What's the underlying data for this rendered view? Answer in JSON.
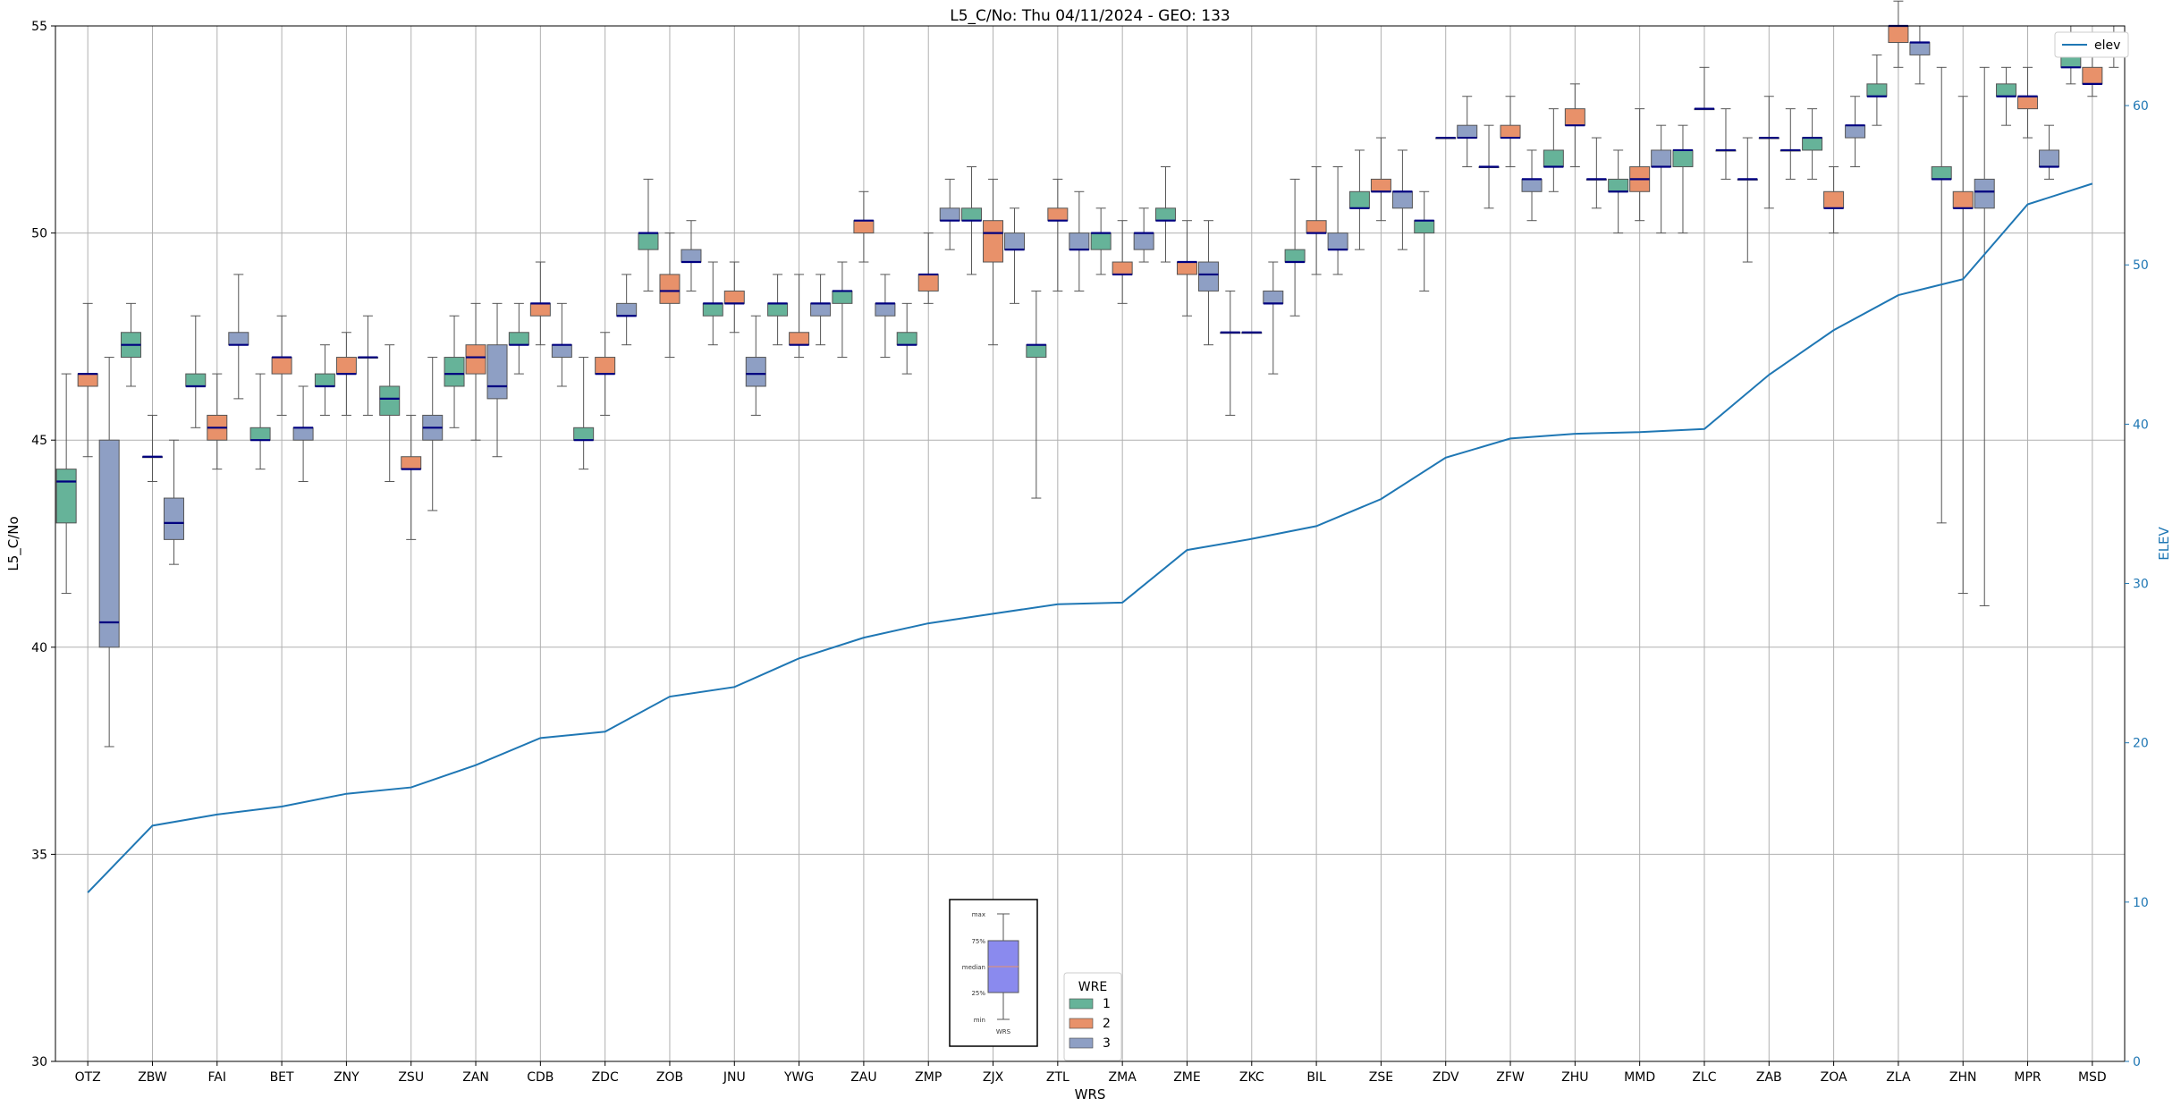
{
  "chart_data": {
    "type": "box",
    "title": "L5_C/No: Thu 04/11/2024 - GEO: 133",
    "xlabel": "WRS",
    "ylabel": "L5_C/No",
    "y2label": "ELEV",
    "ylim": [
      30,
      55
    ],
    "y2lim": [
      0,
      65
    ],
    "yticks": [
      30,
      35,
      40,
      45,
      50,
      55
    ],
    "y2ticks": [
      0,
      10,
      20,
      30,
      40,
      50,
      60
    ],
    "grid": true,
    "categories": [
      "OTZ",
      "ZBW",
      "FAI",
      "BET",
      "ZNY",
      "ZSU",
      "ZAN",
      "CDB",
      "ZDC",
      "ZOB",
      "JNU",
      "YWG",
      "ZAU",
      "ZMP",
      "ZJX",
      "ZTL",
      "ZMA",
      "ZME",
      "ZKC",
      "BIL",
      "ZSE",
      "ZDV",
      "ZFW",
      "ZHU",
      "MMD",
      "ZLC",
      "ZAB",
      "ZOA",
      "ZLA",
      "ZHN",
      "MPR",
      "MSD"
    ],
    "legend": {
      "title": "WRE",
      "placement": "bottom-center",
      "entries": [
        {
          "label": "1",
          "color": "#66b399"
        },
        {
          "label": "2",
          "color": "#e8916a"
        },
        {
          "label": "3",
          "color": "#8e9fc4"
        }
      ]
    },
    "line_legend": {
      "label": "elev",
      "placement": "top-right"
    },
    "box_key": {
      "labels": [
        "max",
        "75%",
        "median",
        "25%",
        "min"
      ],
      "caption": "WRS"
    },
    "series": [
      {
        "name": "1",
        "color": "#66b399",
        "boxes": [
          [
            41.3,
            43,
            44,
            44.3,
            46.6
          ],
          [
            46.3,
            47,
            47.3,
            47.6,
            48.3
          ],
          [
            45.3,
            46.3,
            46.3,
            46.6,
            48
          ],
          [
            44.3,
            45,
            45,
            45.3,
            46.6
          ],
          [
            45.6,
            46.3,
            46.3,
            46.6,
            47.3
          ],
          [
            44,
            45.6,
            46,
            46.3,
            47.3
          ],
          [
            45.3,
            46.3,
            46.6,
            47,
            48
          ],
          [
            46.6,
            47.3,
            47.3,
            47.6,
            48.3
          ],
          [
            44.3,
            45,
            45,
            45.3,
            47
          ],
          [
            48.6,
            49.6,
            50,
            50,
            51.3
          ],
          [
            47.3,
            48,
            48.3,
            48.3,
            49.3
          ],
          [
            47.3,
            48,
            48.3,
            48.3,
            49
          ],
          [
            47,
            48.3,
            48.6,
            48.6,
            49.3
          ],
          [
            46.6,
            47.3,
            47.3,
            47.6,
            48.3
          ],
          [
            49,
            50.3,
            50.3,
            50.6,
            51.6
          ],
          [
            43.6,
            47,
            47.3,
            47.3,
            48.6
          ],
          [
            49,
            49.6,
            50,
            50,
            50.6
          ],
          [
            49.3,
            50.3,
            50.3,
            50.6,
            51.6
          ],
          [
            45.6,
            47.6,
            47.6,
            47.6,
            48.6
          ],
          [
            48,
            49.3,
            49.3,
            49.6,
            51.3
          ],
          [
            49.6,
            50.6,
            50.6,
            51,
            52
          ],
          [
            48.6,
            50,
            50.3,
            50.3,
            51
          ],
          [
            50.6,
            51.6,
            51.6,
            51.6,
            52.6
          ],
          [
            51,
            51.6,
            51.6,
            52,
            53
          ],
          [
            50,
            51,
            51,
            51.3,
            52
          ],
          [
            50,
            51.6,
            52,
            52,
            52.6
          ],
          [
            49.3,
            51.3,
            51.3,
            51.3,
            52.3
          ],
          [
            51.3,
            52,
            52.3,
            52.3,
            53
          ],
          [
            52.6,
            53.3,
            53.3,
            53.6,
            54.3
          ],
          [
            43,
            51.3,
            51.3,
            51.6,
            54
          ],
          [
            52.6,
            53.3,
            53.3,
            53.6,
            54
          ],
          [
            53.6,
            54,
            54,
            54.3,
            55
          ]
        ]
      },
      {
        "name": "2",
        "color": "#e8916a",
        "boxes": [
          [
            44.6,
            46.3,
            46.6,
            46.6,
            48.3
          ],
          [
            44,
            44.6,
            44.6,
            44.6,
            45.6
          ],
          [
            44.3,
            45,
            45.3,
            45.6,
            46.6
          ],
          [
            45.6,
            46.6,
            47,
            47,
            48
          ],
          [
            45.6,
            46.6,
            46.6,
            47,
            47.6
          ],
          [
            42.6,
            44.3,
            44.3,
            44.6,
            45.6
          ],
          [
            45,
            46.6,
            47,
            47.3,
            48.3
          ],
          [
            47.3,
            48,
            48.3,
            48.3,
            49.3
          ],
          [
            45.6,
            46.6,
            46.6,
            47,
            47.6
          ],
          [
            47,
            48.3,
            48.6,
            49,
            50
          ],
          [
            47.6,
            48.3,
            48.3,
            48.6,
            49.3
          ],
          [
            47,
            47.3,
            47.3,
            47.6,
            49
          ],
          [
            49.3,
            50,
            50.3,
            50.3,
            51
          ],
          [
            48.3,
            48.6,
            49,
            49,
            50
          ],
          [
            47.3,
            49.3,
            50,
            50.3,
            51.3
          ],
          [
            48.6,
            50.3,
            50.3,
            50.6,
            51.3
          ],
          [
            48.3,
            49,
            49,
            49.3,
            50.3
          ],
          [
            48,
            49,
            49.3,
            49.3,
            50.3
          ],
          [
            47.6,
            47.6,
            47.6,
            47.6,
            47.6
          ],
          [
            49,
            50,
            50,
            50.3,
            51.6
          ],
          [
            50.3,
            51,
            51,
            51.3,
            52.3
          ],
          [
            52.3,
            52.3,
            52.3,
            52.3,
            52.3
          ],
          [
            51.6,
            52.3,
            52.3,
            52.6,
            53.3
          ],
          [
            51.6,
            52.6,
            52.6,
            53,
            53.6
          ],
          [
            50.3,
            51,
            51.3,
            51.6,
            53
          ],
          [
            53,
            53,
            53,
            53,
            54
          ],
          [
            50.6,
            52.3,
            52.3,
            52.3,
            53.3
          ],
          [
            50,
            50.6,
            50.6,
            51,
            51.6
          ],
          [
            54,
            54.6,
            55,
            55,
            55.6
          ],
          [
            41.3,
            50.6,
            50.6,
            51,
            53.3
          ],
          [
            52.3,
            53,
            53.3,
            53.3,
            54
          ],
          [
            53.3,
            53.6,
            53.6,
            54,
            54.3
          ]
        ]
      },
      {
        "name": "3",
        "color": "#8e9fc4",
        "boxes": [
          [
            37.6,
            40,
            40.6,
            45,
            47
          ],
          [
            42,
            42.6,
            43,
            43.6,
            45
          ],
          [
            46,
            47.3,
            47.3,
            47.6,
            49
          ],
          [
            44,
            45,
            45.3,
            45.3,
            46.3
          ],
          [
            45.6,
            47,
            47,
            47,
            48
          ],
          [
            43.3,
            45,
            45.3,
            45.6,
            47
          ],
          [
            44.6,
            46,
            46.3,
            47.3,
            48.3
          ],
          [
            46.3,
            47,
            47.3,
            47.3,
            48.3
          ],
          [
            47.3,
            48,
            48,
            48.3,
            49
          ],
          [
            48.6,
            49.3,
            49.3,
            49.6,
            50.3
          ],
          [
            45.6,
            46.3,
            46.6,
            47,
            48
          ],
          [
            47.3,
            48,
            48.3,
            48.3,
            49
          ],
          [
            47,
            48,
            48.3,
            48.3,
            49
          ],
          [
            49.6,
            50.3,
            50.3,
            50.6,
            51.3
          ],
          [
            48.3,
            49.6,
            49.6,
            50,
            50.6
          ],
          [
            48.6,
            49.6,
            49.6,
            50,
            51
          ],
          [
            49.3,
            49.6,
            50,
            50,
            50.6
          ],
          [
            47.3,
            48.6,
            49,
            49.3,
            50.3
          ],
          [
            46.6,
            48.3,
            48.3,
            48.6,
            49.3
          ],
          [
            49,
            49.6,
            49.6,
            50,
            51.6
          ],
          [
            49.6,
            50.6,
            51,
            51,
            52
          ],
          [
            51.6,
            52.3,
            52.3,
            52.6,
            53.3
          ],
          [
            50.3,
            51,
            51.3,
            51.3,
            52
          ],
          [
            50.6,
            51.3,
            51.3,
            51.3,
            52.3
          ],
          [
            50,
            51.6,
            51.6,
            52,
            52.6
          ],
          [
            51.3,
            52,
            52,
            52,
            53
          ],
          [
            51.3,
            52,
            52,
            52,
            53
          ],
          [
            51.6,
            52.3,
            52.6,
            52.6,
            53.3
          ],
          [
            53.6,
            54.3,
            54.6,
            54.6,
            55
          ],
          [
            41,
            50.6,
            51,
            51.3,
            54
          ],
          [
            51.3,
            51.6,
            51.6,
            52,
            52.6
          ],
          [
            54,
            54.3,
            54.6,
            54.6,
            55
          ]
        ]
      },
      {
        "name": "elev",
        "type": "line",
        "axis": "right",
        "color": "#1f77b4",
        "values": [
          10.6,
          14.8,
          15.5,
          16.0,
          16.8,
          17.2,
          18.6,
          20.3,
          20.7,
          22.9,
          23.5,
          25.3,
          26.6,
          27.5,
          28.1,
          28.7,
          28.8,
          32.1,
          32.8,
          33.6,
          35.3,
          37.9,
          39.1,
          39.4,
          39.5,
          39.7,
          43.1,
          45.9,
          48.1,
          49.1,
          53.8,
          55.1
        ]
      }
    ]
  }
}
